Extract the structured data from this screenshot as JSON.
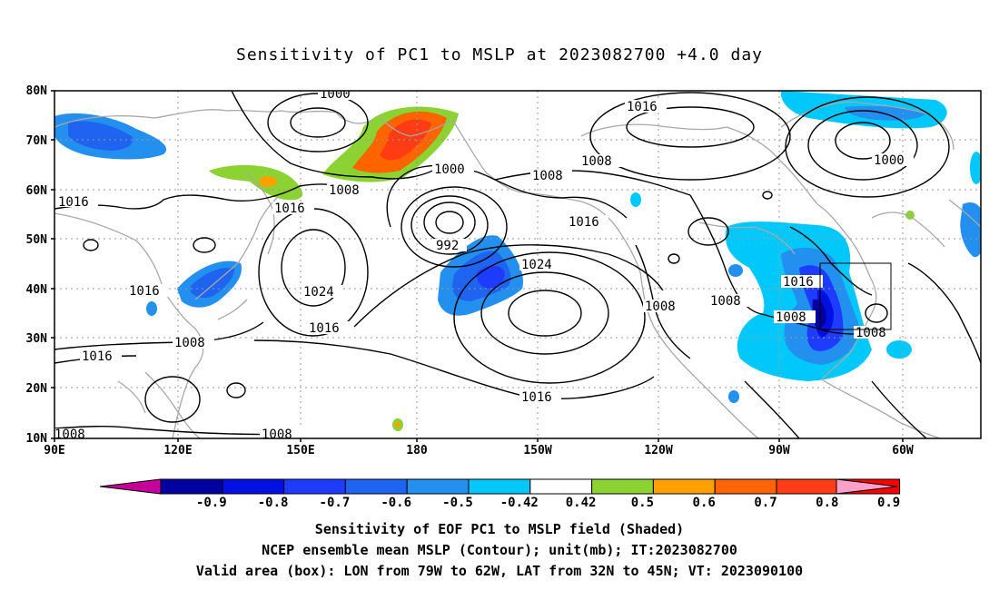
{
  "title": "Sensitivity of PC1 to MSLP at 2023082700 +4.0 day",
  "axes": {
    "lat_labels": [
      "80N",
      "70N",
      "60N",
      "50N",
      "40N",
      "30N",
      "20N",
      "10N"
    ],
    "lon_labels": [
      "90E",
      "120E",
      "150E",
      "180",
      "150W",
      "120W",
      "90W",
      "60W"
    ]
  },
  "contours": [
    {
      "label": "1000",
      "kind": "isobar-label"
    },
    {
      "label": "1016",
      "kind": "isobar-label"
    },
    {
      "label": "1000",
      "kind": "isobar-label"
    },
    {
      "label": "1008",
      "kind": "isobar-label"
    },
    {
      "label": "1008",
      "kind": "isobar-label"
    },
    {
      "label": "1008",
      "kind": "isobar-label"
    },
    {
      "label": "1000",
      "kind": "isobar-label"
    },
    {
      "label": "1016",
      "kind": "isobar-label"
    },
    {
      "label": "1016",
      "kind": "isobar-label"
    },
    {
      "label": "992",
      "kind": "isobar-label"
    },
    {
      "label": "1016",
      "kind": "isobar-label"
    },
    {
      "label": "1024",
      "kind": "isobar-label"
    },
    {
      "label": "1024",
      "kind": "isobar-label"
    },
    {
      "label": "1016",
      "kind": "isobar-label"
    },
    {
      "label": "1016",
      "kind": "isobar-label"
    },
    {
      "label": "1008",
      "kind": "isobar-label"
    },
    {
      "label": "1016",
      "kind": "isobar-label"
    },
    {
      "label": "1008",
      "kind": "isobar-label"
    },
    {
      "label": "1008",
      "kind": "isobar-label"
    },
    {
      "label": "1016",
      "kind": "isobar-label"
    },
    {
      "label": "1008",
      "kind": "isobar-label"
    },
    {
      "label": "1008",
      "kind": "isobar-label"
    },
    {
      "label": "1016",
      "kind": "isobar-label"
    },
    {
      "label": "1008",
      "kind": "isobar-label"
    },
    {
      "label": "1008",
      "kind": "isobar-label"
    }
  ],
  "colorbar": {
    "labels": [
      "-0.9",
      "-0.8",
      "-0.7",
      "-0.6",
      "-0.5",
      "-0.42",
      "0.42",
      "0.5",
      "0.6",
      "0.7",
      "0.8",
      "0.9"
    ],
    "colors": [
      "#0000A0",
      "#0010E0",
      "#1E3CFF",
      "#1E64F0",
      "#2390F0",
      "#00C8FA",
      "#FFFFFF",
      "#8CD232",
      "#FFA000",
      "#FF6400",
      "#FF3C14",
      "#FF0000"
    ],
    "low_end": "#C8009B",
    "high_end": "#FFA0C8"
  },
  "captions": [
    "Sensitivity of EOF PC1 to MSLP field (Shaded)",
    "NCEP ensemble mean MSLP (Contour); unit(mb); IT:2023082700",
    "Valid area (box): LON from 79W to 62W, LAT from 32N to 45N; VT: 2023090100"
  ],
  "colors": {
    "frame": "#000000",
    "coast": "#A8A8A8",
    "grid": "#9A9A9A",
    "contour": "#000000"
  }
}
